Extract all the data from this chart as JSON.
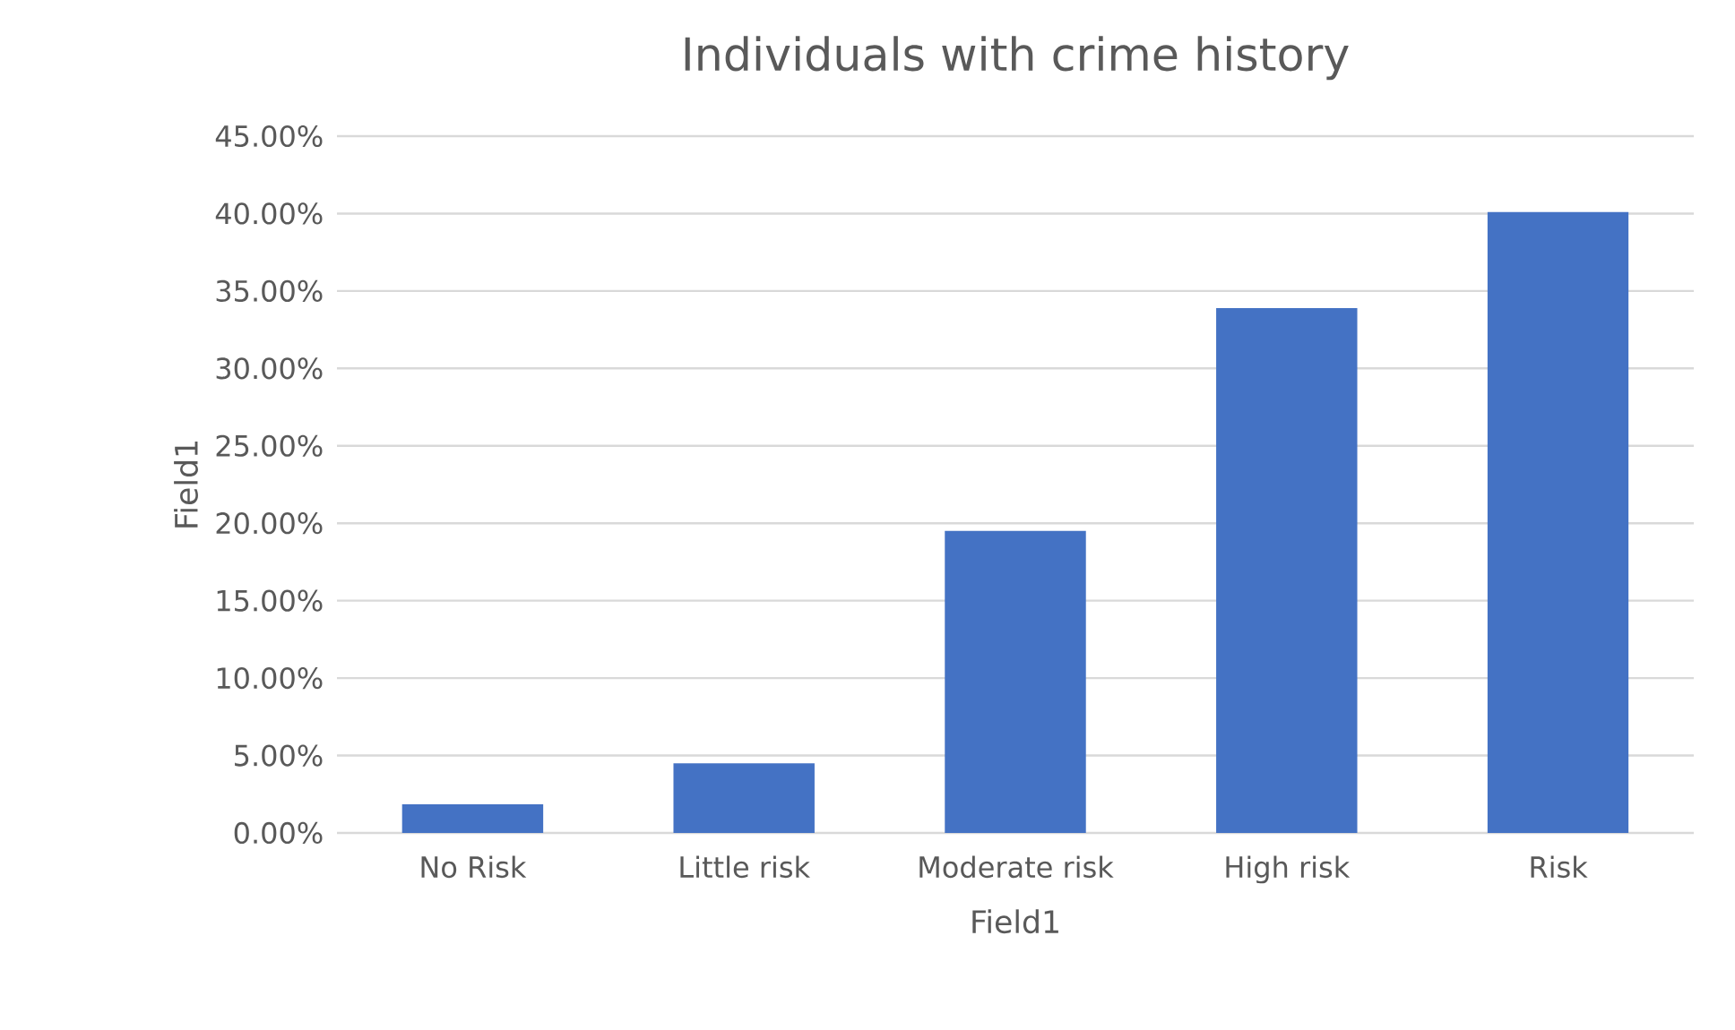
{
  "chart_data": {
    "type": "bar",
    "title": "Individuals with crime history",
    "xlabel": "Field1",
    "ylabel": "Field1",
    "categories": [
      "No Risk",
      "Little risk",
      "Moderate risk",
      "High risk",
      "Risk"
    ],
    "values": [
      1.85,
      4.5,
      19.5,
      33.9,
      40.1
    ],
    "color": "#4472c4",
    "ylim": [
      0,
      45
    ],
    "yticks": [
      {
        "value": 0,
        "label": "0.00%"
      },
      {
        "value": 5,
        "label": "5.00%"
      },
      {
        "value": 10,
        "label": "10.00%"
      },
      {
        "value": 15,
        "label": "15.00%"
      },
      {
        "value": 20,
        "label": "20.00%"
      },
      {
        "value": 25,
        "label": "25.00%"
      },
      {
        "value": 30,
        "label": "30.00%"
      },
      {
        "value": 35,
        "label": "35.00%"
      },
      {
        "value": 40,
        "label": "40.00%"
      },
      {
        "value": 45,
        "label": "45.00%"
      }
    ],
    "grid": "y"
  }
}
